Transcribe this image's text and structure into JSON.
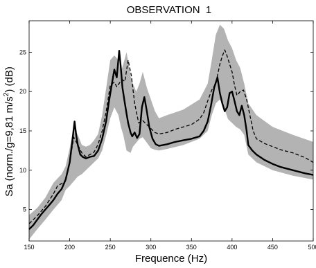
{
  "chart_data": {
    "type": "line",
    "title": "OBSERVATION  1",
    "xlabel": "Frequence (Hz)",
    "ylabel": "Sa (norm./g=9,81 m/s",
    "ylabel_sup": "2",
    "ylabel_end": ") (dB)",
    "xlim": [
      150,
      500
    ],
    "ylim": [
      1,
      29
    ],
    "x_ticks": [
      150,
      200,
      250,
      300,
      350,
      400,
      450,
      500
    ],
    "y_ticks": [
      5,
      10,
      15,
      20,
      25
    ],
    "grid": false,
    "colors": {
      "band": "#b3b3b3",
      "solid": "#000000",
      "dashed": "#000000"
    },
    "series": [
      {
        "style": "band",
        "x": [
          150,
          160,
          170,
          180,
          190,
          195,
          200,
          205,
          210,
          215,
          220,
          225,
          230,
          235,
          240,
          245,
          250,
          255,
          260,
          263,
          266,
          270,
          275,
          278,
          282,
          286,
          290,
          295,
          300,
          305,
          310,
          320,
          340,
          360,
          370,
          375,
          380,
          385,
          390,
          395,
          400,
          405,
          410,
          415,
          420,
          430,
          450,
          475,
          500
        ],
        "upper": [
          4.3,
          5.2,
          6.5,
          8.4,
          9.5,
          10.5,
          12.8,
          15.5,
          14.5,
          13.2,
          13.0,
          13.2,
          13.8,
          14.6,
          17.0,
          20.5,
          24.0,
          24.6,
          24.0,
          22.5,
          23.5,
          25.0,
          22.0,
          21.0,
          20.0,
          21.0,
          22.5,
          20.5,
          19.0,
          17.5,
          16.6,
          17.0,
          17.7,
          19.0,
          21.0,
          24.0,
          27.2,
          28.5,
          28.0,
          26.5,
          25.5,
          24.0,
          23.0,
          21.0,
          18.5,
          17.0,
          15.5,
          14.5,
          13.6
        ],
        "lower": [
          1.2,
          2.5,
          3.7,
          5.0,
          6.2,
          7.5,
          8.0,
          8.6,
          9.2,
          9.5,
          10.0,
          10.5,
          11.0,
          11.5,
          12.5,
          14.5,
          16.6,
          18.0,
          17.0,
          15.5,
          14.5,
          12.5,
          12.2,
          13.0,
          13.5,
          14.0,
          14.2,
          13.5,
          12.8,
          12.6,
          12.5,
          12.7,
          13.2,
          14.0,
          15.0,
          17.0,
          18.5,
          19.0,
          18.0,
          16.5,
          16.0,
          15.5,
          15.2,
          14.5,
          12.0,
          11.0,
          10.0,
          9.3,
          8.8
        ]
      },
      {
        "style": "solid",
        "x": [
          150,
          155,
          160,
          165,
          170,
          175,
          180,
          185,
          190,
          195,
          200,
          203,
          206,
          208,
          210,
          213,
          216,
          220,
          225,
          230,
          235,
          240,
          245,
          248,
          252,
          255,
          258,
          261,
          263,
          265,
          268,
          270,
          272,
          275,
          277,
          280,
          283,
          286,
          289,
          292,
          295,
          298,
          302,
          306,
          310,
          320,
          330,
          340,
          350,
          360,
          365,
          370,
          374,
          378,
          382,
          385,
          388,
          391,
          394,
          397,
          400,
          403,
          406,
          409,
          412,
          415,
          418,
          420,
          425,
          430,
          440,
          450,
          460,
          475,
          490,
          500
        ],
        "y": [
          2.5,
          3.0,
          3.7,
          4.4,
          5.0,
          5.6,
          6.2,
          7.0,
          7.6,
          8.8,
          11.0,
          13.5,
          16.2,
          14.5,
          13.2,
          12.0,
          11.7,
          11.5,
          11.7,
          11.8,
          12.5,
          14.0,
          16.3,
          18.5,
          21.0,
          22.8,
          21.8,
          25.2,
          23.0,
          20.5,
          18.5,
          17.2,
          16.0,
          14.8,
          14.3,
          14.8,
          14.1,
          14.6,
          18.0,
          19.3,
          17.5,
          15.5,
          14.0,
          13.3,
          13.1,
          13.3,
          13.6,
          13.8,
          14.0,
          14.3,
          15.0,
          16.2,
          18.2,
          20.5,
          21.8,
          19.8,
          18.5,
          17.5,
          18.0,
          19.8,
          20.0,
          18.8,
          17.5,
          17.0,
          18.2,
          17.0,
          15.0,
          13.2,
          12.5,
          12.0,
          11.3,
          10.8,
          10.4,
          10.0,
          9.6,
          9.4
        ]
      },
      {
        "style": "dashed",
        "x": [
          150,
          160,
          170,
          180,
          185,
          190,
          195,
          200,
          205,
          210,
          215,
          220,
          225,
          230,
          235,
          240,
          245,
          250,
          255,
          258,
          262,
          265,
          268,
          272,
          276,
          280,
          285,
          290,
          295,
          300,
          305,
          310,
          320,
          330,
          340,
          350,
          360,
          365,
          370,
          375,
          380,
          385,
          388,
          391,
          394,
          397,
          400,
          403,
          406,
          410,
          414,
          418,
          422,
          426,
          430,
          440,
          450,
          460,
          475,
          490,
          500
        ],
        "y": [
          3.2,
          4.2,
          5.4,
          7.0,
          8.0,
          8.3,
          8.7,
          11.0,
          14.2,
          13.2,
          12.2,
          11.7,
          12.0,
          12.3,
          13.3,
          15.0,
          17.5,
          20.8,
          21.2,
          20.6,
          21.2,
          21.5,
          21.3,
          24.0,
          22.0,
          18.5,
          16.0,
          16.3,
          15.8,
          15.3,
          14.8,
          14.6,
          14.8,
          15.2,
          15.5,
          15.8,
          16.5,
          17.3,
          18.8,
          20.2,
          21.0,
          23.5,
          24.5,
          25.3,
          24.5,
          23.5,
          22.5,
          20.8,
          19.5,
          20.0,
          20.2,
          19.0,
          17.0,
          15.0,
          14.0,
          13.4,
          13.0,
          12.6,
          12.2,
          11.6,
          11.0
        ]
      }
    ]
  }
}
